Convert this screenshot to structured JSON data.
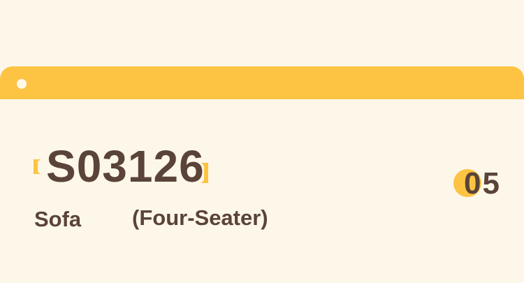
{
  "colors": {
    "accent": "#fdc343",
    "text": "#5a4339",
    "background": "#fdf7e9"
  },
  "item": {
    "code": "S03126",
    "name": "Sofa",
    "variant": "(Four-Seater)",
    "number": "05"
  }
}
